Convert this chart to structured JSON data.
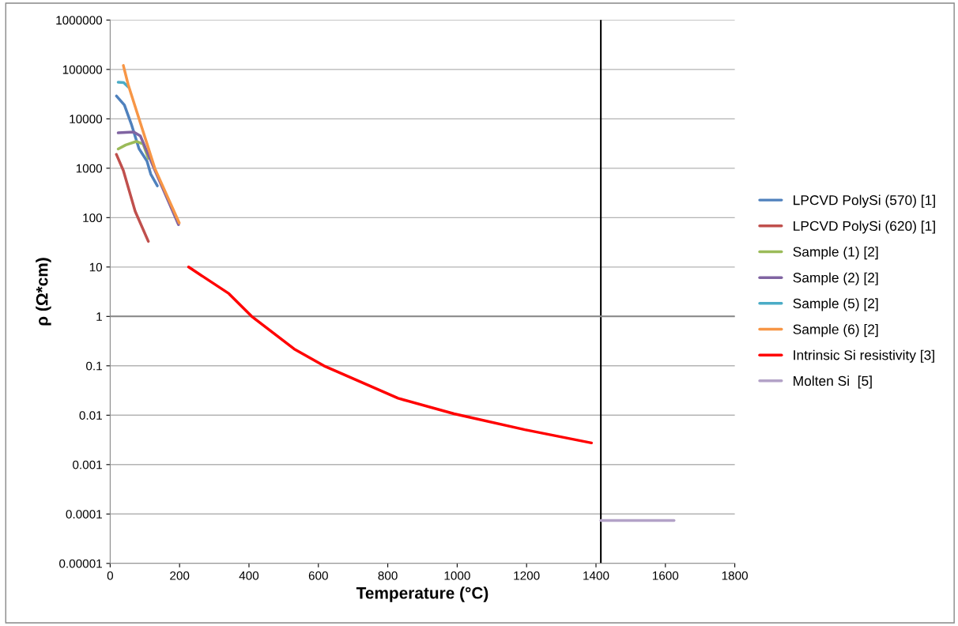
{
  "chart_data": {
    "type": "line",
    "xlabel": "Temperature (°C)",
    "ylabel": "ρ (Ω*cm)",
    "log": "y",
    "xlim": [
      0,
      1800
    ],
    "xticks": [
      0,
      200,
      400,
      600,
      800,
      1000,
      1200,
      1400,
      1600,
      1800
    ],
    "ylim": [
      1e-05,
      1000000
    ],
    "yticks": [
      {
        "value": 1e-05,
        "label": "0.00001"
      },
      {
        "value": 0.0001,
        "label": "0.0001"
      },
      {
        "value": 0.001,
        "label": "0.001"
      },
      {
        "value": 0.01,
        "label": "0.01"
      },
      {
        "value": 0.1,
        "label": "0.1"
      },
      {
        "value": 1,
        "label": "1"
      },
      {
        "value": 10,
        "label": "10"
      },
      {
        "value": 100,
        "label": "100"
      },
      {
        "value": 1000,
        "label": "1000"
      },
      {
        "value": 10000,
        "label": "10000"
      },
      {
        "value": 100000,
        "label": "100000"
      },
      {
        "value": 1000000,
        "label": "1000000"
      }
    ],
    "grid": "y",
    "legend": "right",
    "marker": "none",
    "line_style": "solid",
    "ref_lines": [
      {
        "axis": "x",
        "value": 1414,
        "color": "#000000"
      },
      {
        "axis": "y",
        "value": 1,
        "color": "#868686"
      }
    ],
    "series": [
      {
        "name": "LPCVD PolySi (570) [1]",
        "color": "#4f81bd",
        "x": [
          18,
          41,
          61,
          83,
          106,
          117,
          136
        ],
        "values": [
          29000,
          19000,
          7800,
          2500,
          1400,
          760,
          440
        ]
      },
      {
        "name": "LPCVD PolySi (620) [1]",
        "color": "#c0504d",
        "x": [
          18,
          38,
          52,
          72,
          110
        ],
        "values": [
          1900,
          900,
          410,
          135,
          33
        ]
      },
      {
        "name": "Sample (1) [2]",
        "color": "#9bbb59",
        "x": [
          23,
          45,
          75,
          95,
          110
        ],
        "values": [
          2450,
          2960,
          3480,
          3100,
          1580
        ]
      },
      {
        "name": "Sample (2) [2]",
        "color": "#8064a2",
        "x": [
          23,
          68,
          87,
          129,
          197
        ],
        "values": [
          5200,
          5400,
          4500,
          900,
          72
        ]
      },
      {
        "name": "Sample (5) [2]",
        "color": "#4bacc6",
        "x": [
          23,
          39,
          52
        ],
        "values": [
          55000,
          54000,
          44000
        ]
      },
      {
        "name": "Sample (6) [2]",
        "color": "#f79646",
        "x": [
          38,
          52,
          129,
          199
        ],
        "values": [
          120000,
          49000,
          980,
          78
        ]
      },
      {
        "name": "Intrinsic Si resistivity [3]",
        "color": "#ff0000",
        "x": [
          226,
          342,
          408,
          530,
          616,
          830,
          991,
          1195,
          1387
        ],
        "values": [
          10,
          2.9,
          1,
          0.22,
          0.1,
          0.022,
          0.0107,
          0.0051,
          0.00275
        ]
      },
      {
        "name": "Molten Si  [5]",
        "color": "#b3a2c7",
        "x": [
          1414,
          1625
        ],
        "values": [
          7.4e-05,
          7.4e-05
        ]
      }
    ]
  }
}
